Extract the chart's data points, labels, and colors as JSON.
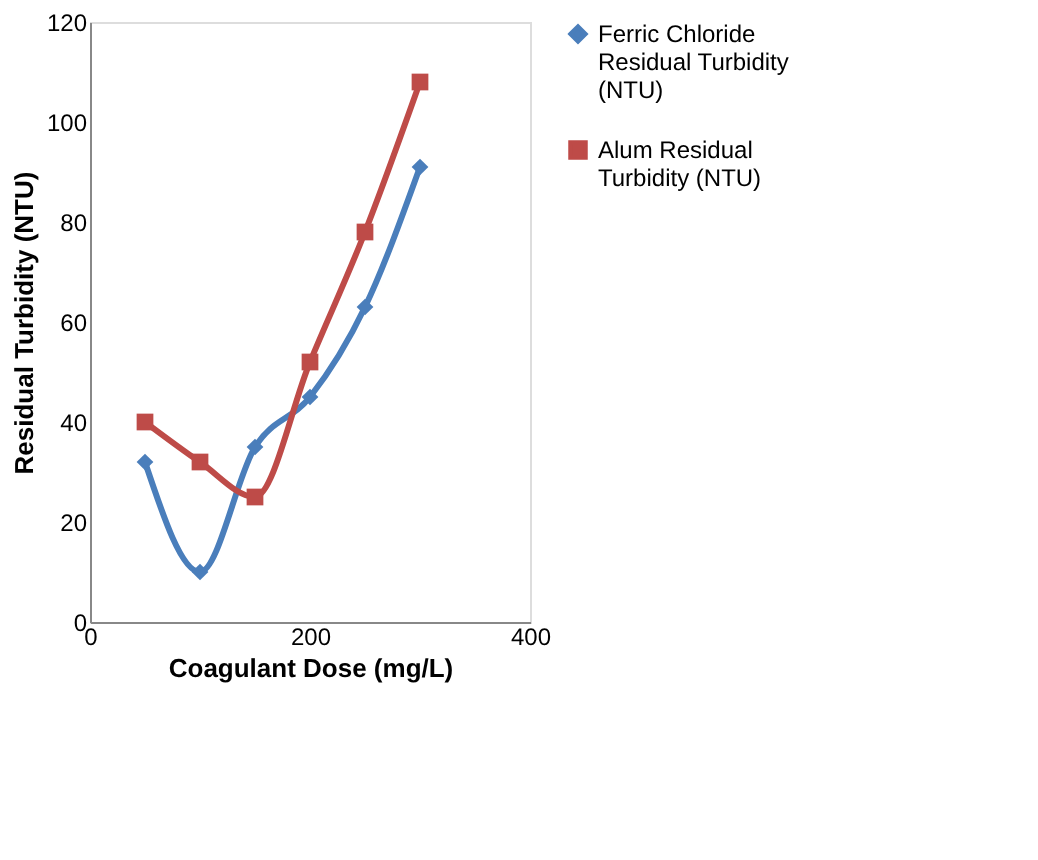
{
  "chart_data": {
    "type": "line",
    "xlabel": "Coagulant Dose (mg/L)",
    "ylabel": "Residual Turbidity (NTU)",
    "x": [
      50,
      100,
      150,
      200,
      250,
      300
    ],
    "series": [
      {
        "name": "Ferric Chloride Residual Turbidity (NTU)",
        "color": "#4a7ebb",
        "marker": "diamond",
        "values": [
          32,
          10,
          35,
          45,
          63,
          91
        ]
      },
      {
        "name": "Alum Residual Turbidity (NTU)",
        "color": "#be4b48",
        "marker": "square",
        "values": [
          40,
          32,
          25,
          52,
          78,
          108
        ]
      }
    ],
    "xlim": [
      0,
      400
    ],
    "xticks": [
      0,
      200,
      400
    ],
    "ylim": [
      0,
      120
    ],
    "yticks": [
      0,
      20,
      40,
      60,
      80,
      100,
      120
    ],
    "grid": false,
    "legend": "right",
    "line_style": "solid"
  }
}
